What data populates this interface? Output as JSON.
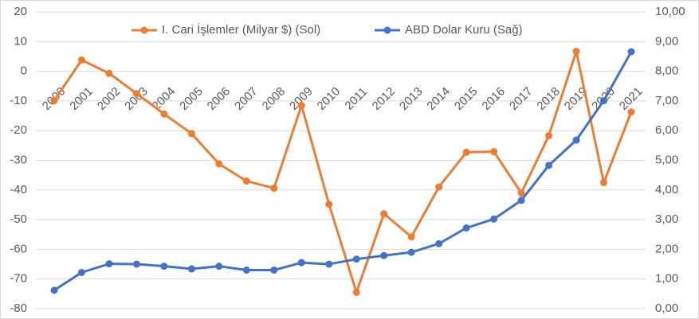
{
  "chart_data": {
    "type": "line",
    "categories": [
      "2000",
      "2001",
      "2002",
      "2003",
      "2004",
      "2005",
      "2006",
      "2007",
      "2008",
      "2009",
      "2010",
      "2011",
      "2012",
      "2013",
      "2014",
      "2015",
      "2016",
      "2017",
      "2018",
      "2019",
      "2020",
      "2021"
    ],
    "series": [
      {
        "name": "I. Cari İşlemler (Milyar $) (Sol)",
        "color": "#ed7d31",
        "axis": "y",
        "values": [
          -9.9,
          3.8,
          -0.7,
          -7.5,
          -14.4,
          -21.0,
          -31.2,
          -37.0,
          -39.4,
          -11.5,
          -44.8,
          -74.5,
          -48.0,
          -55.8,
          -39.0,
          -27.3,
          -27.1,
          -41.0,
          -21.7,
          6.7,
          -37.5,
          -13.7
        ]
      },
      {
        "name": "ABD Dolar Kuru (Sağ)",
        "color": "#4472c4",
        "axis": "y2",
        "values": [
          0.62,
          1.22,
          1.51,
          1.5,
          1.43,
          1.34,
          1.43,
          1.3,
          1.3,
          1.55,
          1.5,
          1.67,
          1.79,
          1.9,
          2.19,
          2.72,
          3.02,
          3.65,
          4.83,
          5.68,
          7.01,
          8.66
        ]
      }
    ],
    "ylim": [
      -80,
      20
    ],
    "yticks": [
      -80,
      -70,
      -60,
      -50,
      -40,
      -30,
      -20,
      -10,
      0,
      10,
      20
    ],
    "y2lim": [
      0,
      10
    ],
    "y2ticks": [
      {
        "value": 0,
        "label": "0,00"
      },
      {
        "value": 1,
        "label": "1,00"
      },
      {
        "value": 2,
        "label": "2,00"
      },
      {
        "value": 3,
        "label": "3,00"
      },
      {
        "value": 4,
        "label": "4,00"
      },
      {
        "value": 5,
        "label": "5,00"
      },
      {
        "value": 6,
        "label": "6,00"
      },
      {
        "value": 7,
        "label": "7,00"
      },
      {
        "value": 8,
        "label": "8,00"
      },
      {
        "value": 9,
        "label": "9,00"
      },
      {
        "value": 10,
        "label": "10,00"
      }
    ],
    "grid": true,
    "legend": "top"
  }
}
